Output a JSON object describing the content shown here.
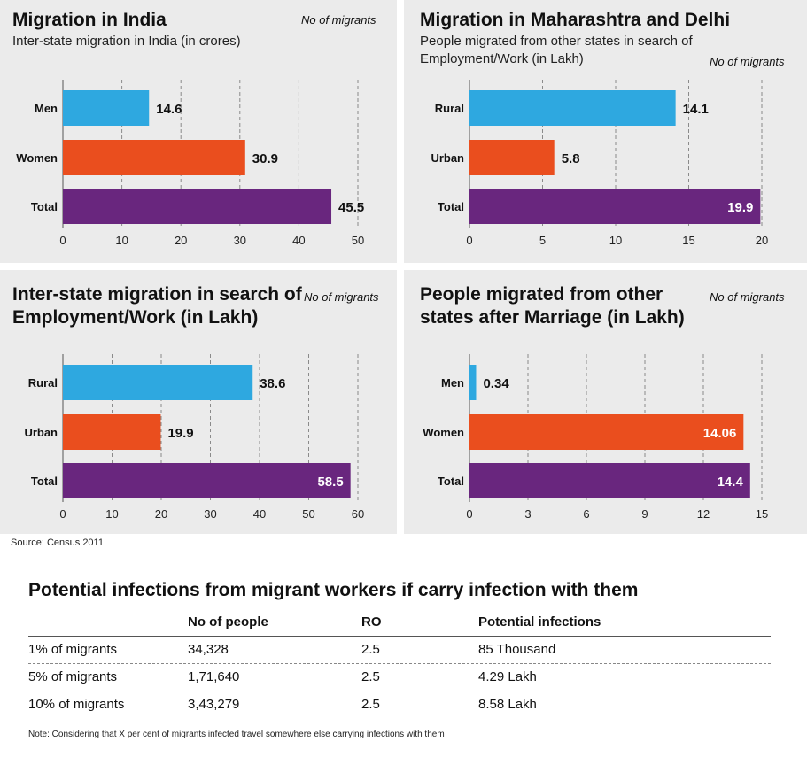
{
  "colors": {
    "men_rural": "#2ea8e0",
    "women_urban": "#ea4e1e",
    "total": "#69267e",
    "panel_bg": "#ebebeb"
  },
  "chart_data": [
    {
      "type": "bar",
      "title": "Migration in India",
      "subtitle": "Inter-state migration in India (in crores)",
      "note": "No of migrants",
      "categories": [
        "Men",
        "Women",
        "Total"
      ],
      "values": [
        14.6,
        30.9,
        45.5
      ],
      "value_labels": [
        "14.6",
        "30.9",
        "45.5"
      ],
      "label_inside": [
        false,
        false,
        false
      ],
      "xticks": [
        0,
        10,
        20,
        30,
        40,
        50
      ],
      "xlim": [
        0,
        50
      ],
      "grid": true,
      "orientation": "horizontal"
    },
    {
      "type": "bar",
      "title": "Migration in Maharashtra and Delhi",
      "subtitle": "People migrated from other states in search of Employment/Work (in Lakh)",
      "note": "No of migrants",
      "categories": [
        "Rural",
        "Urban",
        "Total"
      ],
      "values": [
        14.1,
        5.8,
        19.9
      ],
      "value_labels": [
        "14.1",
        "5.8",
        "19.9"
      ],
      "label_inside": [
        false,
        false,
        true
      ],
      "xticks": [
        0,
        5,
        10,
        15,
        20
      ],
      "xlim": [
        0,
        20
      ],
      "grid": true,
      "orientation": "horizontal"
    },
    {
      "type": "bar",
      "title": "Inter-state migration in search of Employment/Work (in Lakh)",
      "subtitle": "",
      "note": "No of migrants",
      "categories": [
        "Rural",
        "Urban",
        "Total"
      ],
      "values": [
        38.6,
        19.9,
        58.5
      ],
      "value_labels": [
        "38.6",
        "19.9",
        "58.5"
      ],
      "label_inside": [
        false,
        false,
        true
      ],
      "xticks": [
        0,
        10,
        20,
        30,
        40,
        50,
        60
      ],
      "xlim": [
        0,
        60
      ],
      "grid": true,
      "orientation": "horizontal"
    },
    {
      "type": "bar",
      "title": "People migrated from other states after Marriage (in Lakh)",
      "subtitle": "",
      "note": "No of migrants",
      "categories": [
        "Men",
        "Women",
        "Total"
      ],
      "values": [
        0.34,
        14.06,
        14.4
      ],
      "value_labels": [
        "0.34",
        "14.06",
        "14.4"
      ],
      "label_inside": [
        false,
        true,
        true
      ],
      "xticks": [
        0,
        3,
        6,
        9,
        12,
        15
      ],
      "xlim": [
        0,
        15
      ],
      "grid": true,
      "orientation": "horizontal"
    }
  ],
  "source": "Source: Census 2011",
  "table": {
    "title": "Potential infections from migrant workers if carry infection with them",
    "headers": [
      "",
      "No of people",
      "RO",
      "Potential infections"
    ],
    "rows": [
      [
        "1% of migrants",
        "34,328",
        "2.5",
        "85 Thousand"
      ],
      [
        "5% of migrants",
        "1,71,640",
        "2.5",
        "4.29 Lakh"
      ],
      [
        "10% of migrants",
        "3,43,279",
        "2.5",
        "8.58 Lakh"
      ]
    ]
  },
  "note": "Note: Considering that X per cent of migrants infected travel somewhere else carrying infections with them"
}
